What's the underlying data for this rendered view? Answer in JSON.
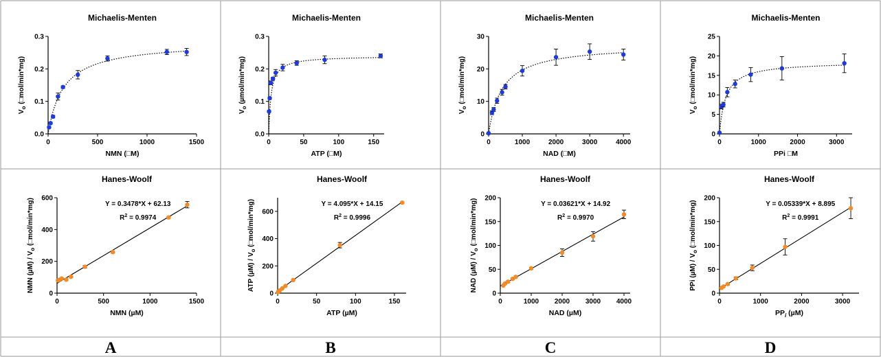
{
  "panel_labels": [
    "A",
    "B",
    "C",
    "D"
  ],
  "colors": {
    "mm_points": "#1f3bd6",
    "hw_points": "#f28c28",
    "axis": "#000000",
    "grid_border": "#9a9a9a"
  },
  "chart_data": [
    {
      "id": "mm-nmn",
      "type": "scatter",
      "fit": "michaelis-menten",
      "title": "Michaelis-Menten",
      "xlabel": "NMN (□M)",
      "ylabel_main": "V",
      "ylabel_sub": "o",
      "ylabel_rest": " (□mol/min*mg)",
      "xlim": [
        0,
        1500
      ],
      "ylim": [
        0,
        0.3
      ],
      "xticks": [
        0,
        500,
        1000,
        1500
      ],
      "yticks": [
        0.0,
        0.1,
        0.2,
        0.3
      ],
      "ytick_labels": [
        "0.0",
        "0.1",
        "0.2",
        "0.3"
      ],
      "x": [
        10,
        25,
        50,
        100,
        150,
        300,
        600,
        1200,
        1400
      ],
      "y": [
        0.02,
        0.033,
        0.053,
        0.115,
        0.144,
        0.182,
        0.232,
        0.252,
        0.252
      ],
      "err": [
        0.002,
        0.003,
        0.004,
        0.011,
        0.004,
        0.013,
        0.008,
        0.008,
        0.011
      ],
      "vmax": 0.283,
      "km": 155
    },
    {
      "id": "mm-atp",
      "type": "scatter",
      "fit": "michaelis-menten",
      "title": "Michaelis-Menten",
      "xlabel": "ATP (□M)",
      "ylabel_main": "V",
      "ylabel_sub": "o",
      "ylabel_rest": " (µmol/min*mg)",
      "xlim": [
        0,
        165
      ],
      "ylim": [
        0,
        0.3
      ],
      "xticks": [
        0,
        50,
        100,
        150
      ],
      "yticks": [
        0.0,
        0.1,
        0.2,
        0.3
      ],
      "ytick_labels": [
        "0.0",
        "0.1",
        "0.2",
        "0.3"
      ],
      "x": [
        0.5,
        1.5,
        3,
        6,
        10,
        20,
        40,
        80,
        160
      ],
      "y": [
        0.069,
        0.11,
        0.157,
        0.17,
        0.188,
        0.204,
        0.218,
        0.228,
        0.24
      ],
      "err": [
        0.003,
        0.003,
        0.006,
        0.004,
        0.01,
        0.01,
        0.007,
        0.012,
        0.006
      ],
      "vmax": 0.24,
      "km": 3.5
    },
    {
      "id": "mm-nad",
      "type": "scatter",
      "fit": "michaelis-menten",
      "title": "Michaelis-Menten",
      "xlabel": "NAD (□M)",
      "ylabel_main": "V",
      "ylabel_sub": "o",
      "ylabel_rest": " (□mol/min*mg)",
      "xlim": [
        0,
        4200
      ],
      "ylim": [
        0,
        30
      ],
      "xticks": [
        0,
        1000,
        2000,
        3000,
        4000
      ],
      "yticks": [
        0,
        10,
        20,
        30
      ],
      "ytick_labels": [
        "0",
        "10",
        "20",
        "30"
      ],
      "x": [
        0,
        100,
        150,
        250,
        400,
        500,
        1000,
        2000,
        3000,
        4000
      ],
      "y": [
        0.2,
        6.5,
        7.5,
        10.2,
        12.8,
        14.5,
        19.4,
        23.6,
        25.3,
        24.4
      ],
      "err": [
        0.2,
        0.6,
        0.6,
        0.8,
        0.9,
        0.7,
        1.6,
        2.5,
        2.4,
        1.7
      ],
      "vmax": 27.5,
      "km": 400
    },
    {
      "id": "mm-ppi",
      "type": "scatter",
      "fit": "michaelis-menten",
      "title": "Michaelis-Menten",
      "xlabel": "PPi □M",
      "ylabel_main": "V",
      "ylabel_sub": "o",
      "ylabel_rest": " (□mol/min*mg)",
      "xlim": [
        0,
        3400
      ],
      "ylim": [
        0,
        25
      ],
      "xticks": [
        0,
        1000,
        2000,
        3000
      ],
      "yticks": [
        0,
        5,
        10,
        15,
        20,
        25
      ],
      "ytick_labels": [
        "0",
        "5",
        "10",
        "15",
        "20",
        "25"
      ],
      "x": [
        0,
        50,
        100,
        200,
        400,
        800,
        1600,
        3200
      ],
      "y": [
        0.3,
        7.0,
        7.5,
        10.7,
        12.8,
        15.2,
        16.8,
        18.1
      ],
      "err": [
        0.2,
        0.6,
        0.6,
        1.2,
        1.0,
        1.8,
        3.0,
        2.4
      ],
      "vmax": 18.5,
      "km": 160
    },
    {
      "id": "hw-nmn",
      "type": "scatter",
      "fit": "linear",
      "title": "Hanes-Woolf",
      "xlabel": "NMN (µM)",
      "ylabel_main": "NMN (µM) / V",
      "ylabel_sub": "o",
      "ylabel_rest": " (□mol/min*mg)",
      "equation": "Y = 0.3478*X + 62.13",
      "r2_label": "R",
      "r2_sup": "2",
      "r2_value": " = 0.9974",
      "xlim": [
        0,
        1500
      ],
      "ylim": [
        0,
        600
      ],
      "xticks": [
        0,
        500,
        1000,
        1500
      ],
      "yticks": [
        0,
        200,
        400,
        600
      ],
      "ytick_labels": [
        "0",
        "200",
        "400",
        "600"
      ],
      "x": [
        10,
        25,
        50,
        100,
        150,
        300,
        600,
        1200,
        1400
      ],
      "y": [
        80,
        84,
        92,
        85,
        103,
        166,
        258,
        476,
        556
      ],
      "err": [
        4,
        4,
        5,
        6,
        4,
        8,
        6,
        6,
        20
      ],
      "slope": 0.3478,
      "intercept": 62.13
    },
    {
      "id": "hw-atp",
      "type": "scatter",
      "fit": "linear",
      "title": "Hanes-Woolf",
      "xlabel": "ATP (µM)",
      "ylabel_main": "ATP (µM) / V",
      "ylabel_sub": "o",
      "ylabel_rest": " (□mol/min*mg)",
      "equation": "Y = 4.095*X + 14.15",
      "r2_label": "R",
      "r2_sup": "2",
      "r2_value": " = 0.9996",
      "xlim": [
        0,
        165
      ],
      "ylim": [
        0,
        700
      ],
      "xticks": [
        0,
        50,
        100,
        150
      ],
      "yticks": [
        0,
        200,
        400,
        600
      ],
      "ytick_labels": [
        "0",
        "200",
        "400",
        "600"
      ],
      "x": [
        0.5,
        1.5,
        3,
        6,
        10,
        20,
        80,
        160
      ],
      "y": [
        8,
        14,
        20,
        35,
        53,
        96,
        352,
        664
      ],
      "err": [
        1,
        1,
        1,
        2,
        3,
        4,
        20,
        6
      ],
      "slope": 4.095,
      "intercept": 14.15
    },
    {
      "id": "hw-nad",
      "type": "scatter",
      "fit": "linear",
      "title": "Hanes-Woolf",
      "xlabel": "NAD (µM)",
      "ylabel_main": "NAD (µM) / V",
      "ylabel_sub": "o",
      "ylabel_rest": " (□mol/min*mg)",
      "equation": "Y = 0.03621*X + 14.92",
      "r2_label": "R",
      "r2_sup": "2",
      "r2_value": " = 0.9970",
      "xlim": [
        0,
        4200
      ],
      "ylim": [
        0,
        200
      ],
      "xticks": [
        0,
        1000,
        2000,
        3000,
        4000
      ],
      "yticks": [
        0,
        50,
        100,
        150,
        200
      ],
      "ytick_labels": [
        "0",
        "50",
        "100",
        "150",
        "200"
      ],
      "x": [
        100,
        150,
        250,
        400,
        500,
        1000,
        2000,
        3000,
        4000
      ],
      "y": [
        16,
        20,
        24,
        30,
        34,
        52,
        85,
        119,
        165
      ],
      "err": [
        1,
        1,
        2,
        2,
        2,
        2,
        8,
        10,
        9
      ],
      "slope": 0.03621,
      "intercept": 14.92
    },
    {
      "id": "hw-ppi",
      "type": "scatter",
      "fit": "linear",
      "title": "Hanes-Woolf",
      "xlabel": "PP",
      "xlabel_sub": "i",
      "xlabel_rest": " (µM)",
      "ylabel_main": "PPi (µM) / V",
      "ylabel_sub": "o",
      "ylabel_rest": " (□mol/min*mg)",
      "equation": "Y = 0.05339*X + 8.895",
      "r2_label": "R",
      "r2_sup": "2",
      "r2_value": " = 0.9991",
      "xlim": [
        0,
        3400
      ],
      "ylim": [
        0,
        200
      ],
      "xticks": [
        0,
        1000,
        2000,
        3000
      ],
      "yticks": [
        0,
        50,
        100,
        150,
        200
      ],
      "ytick_labels": [
        "0",
        "50",
        "100",
        "150",
        "200"
      ],
      "x": [
        50,
        100,
        200,
        400,
        800,
        1600,
        3200
      ],
      "y": [
        11,
        14,
        19,
        31,
        53,
        97,
        178
      ],
      "err": [
        1,
        1,
        2,
        3,
        6,
        17,
        22
      ],
      "slope": 0.05339,
      "intercept": 8.895
    }
  ]
}
